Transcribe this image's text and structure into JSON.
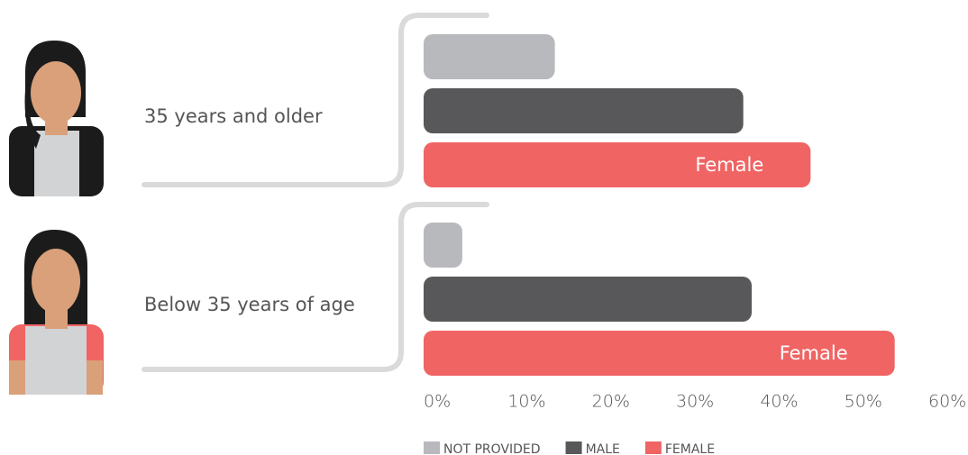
{
  "chart_data": {
    "type": "bar",
    "orientation": "horizontal",
    "categories": [
      "35 years and older",
      "Below 35 years of age"
    ],
    "series": [
      {
        "name": "NOT PROVIDED",
        "color": "#b8b9bc",
        "values": [
          15.6,
          4.6
        ]
      },
      {
        "name": "MALE",
        "color": "#58585a",
        "values": [
          38,
          39
        ]
      },
      {
        "name": "FEMALE",
        "color": "#f06464",
        "values": [
          46,
          56
        ]
      }
    ],
    "bar_labels": [
      "Female",
      "Female"
    ],
    "xlim": [
      0,
      60
    ],
    "xticks": [
      {
        "value": 0,
        "label": "0%"
      },
      {
        "value": 10,
        "label": "10%"
      },
      {
        "value": 20,
        "label": "20%"
      },
      {
        "value": 30,
        "label": "30%"
      },
      {
        "value": 40,
        "label": "40%"
      },
      {
        "value": 50,
        "label": "50%"
      },
      {
        "value": 60,
        "label": "60%"
      }
    ]
  }
}
